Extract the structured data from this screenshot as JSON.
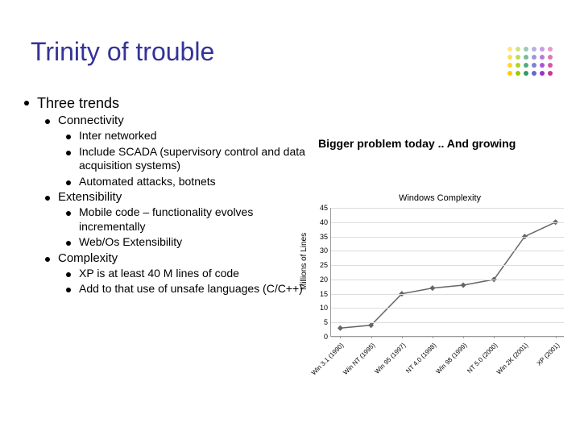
{
  "title": "Trinity of trouble",
  "title_color": "#333399",
  "deco": {
    "cols": 6,
    "rows": 4,
    "radius": 3,
    "gap": 10,
    "colors_by_col": [
      "#ffcc00",
      "#99cc00",
      "#339966",
      "#6666cc",
      "#9933cc",
      "#cc3399"
    ]
  },
  "content": {
    "level1": "Three trends",
    "items": [
      {
        "label": "Connectivity",
        "sub": [
          "Inter networked",
          "Include SCADA (supervisory control and data acquisition systems)",
          "Automated attacks, botnets"
        ]
      },
      {
        "label": "Extensibility",
        "sub": [
          "Mobile code – functionality evolves incrementally",
          "Web/Os Extensibility"
        ]
      },
      {
        "label": "Complexity",
        "sub": [
          "XP is at least 40 M lines of code",
          "Add to that use of unsafe languages (C/C++)"
        ]
      }
    ]
  },
  "callout": "Bigger problem today .. And growing",
  "chart": {
    "type": "line",
    "title": "Windows Complexity",
    "ylabel": "Millions of Lines",
    "xticks": [
      "Win 3.1 (1990)",
      "Win NT (1995)",
      "Win 95 (1997)",
      "NT 4.0 (1998)",
      "Win 98 (1999)",
      "NT 5.0 (2000)",
      "Win 2K (2001)",
      "XP (2001)"
    ],
    "values": [
      3,
      4,
      15,
      17,
      18,
      20,
      35,
      40
    ],
    "ylim": [
      0,
      45
    ],
    "yticks": [
      0,
      5,
      10,
      15,
      20,
      25,
      30,
      35,
      40,
      45
    ],
    "line_color": "#666666",
    "marker_color": "#666666",
    "marker_size": 5,
    "grid_color": "#dddddd",
    "background_color": "#ffffff"
  }
}
